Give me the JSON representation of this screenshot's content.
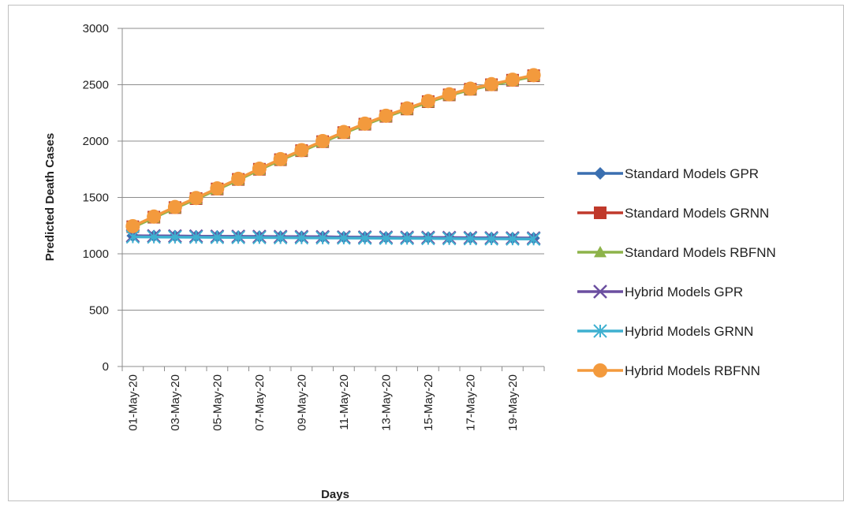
{
  "chart_data": {
    "type": "line",
    "title": "",
    "xlabel": "Days",
    "ylabel": "Predicted Death Cases",
    "ylim": [
      0,
      3000
    ],
    "yticks": [
      "0",
      "500",
      "1000",
      "1500",
      "2000",
      "2500",
      "3000"
    ],
    "grid": true,
    "legend_position": "right",
    "x": [
      "01-May-20",
      "02-May-20",
      "03-May-20",
      "04-May-20",
      "05-May-20",
      "06-May-20",
      "07-May-20",
      "08-May-20",
      "09-May-20",
      "10-May-20",
      "11-May-20",
      "12-May-20",
      "13-May-20",
      "14-May-20",
      "15-May-20",
      "16-May-20",
      "17-May-20",
      "18-May-20",
      "19-May-20",
      "20-May-20"
    ],
    "x_tick_labels": [
      "01-May-20",
      "03-May-20",
      "05-May-20",
      "07-May-20",
      "09-May-20",
      "11-May-20",
      "13-May-20",
      "15-May-20",
      "17-May-20",
      "19-May-20"
    ],
    "series": [
      {
        "name": "Standard Models GPR",
        "color": "#3a6fb0",
        "marker": "diamond",
        "values": [
          1160,
          1158,
          1157,
          1156,
          1155,
          1154,
          1153,
          1152,
          1151,
          1150,
          1148,
          1147,
          1146,
          1145,
          1144,
          1143,
          1142,
          1141,
          1140,
          1139
        ]
      },
      {
        "name": "Standard Models GRNN",
        "color": "#c0392b",
        "marker": "square",
        "values": [
          1240,
          1325,
          1410,
          1490,
          1575,
          1660,
          1750,
          1835,
          1915,
          1995,
          2075,
          2150,
          2220,
          2285,
          2350,
          2410,
          2460,
          2500,
          2540,
          2580
        ]
      },
      {
        "name": "Standard Models RBFNN",
        "color": "#8db34a",
        "marker": "triangle",
        "values": [
          1235,
          1320,
          1405,
          1485,
          1570,
          1655,
          1745,
          1830,
          1910,
          1990,
          2070,
          2145,
          2215,
          2280,
          2345,
          2405,
          2455,
          2495,
          2535,
          2575
        ]
      },
      {
        "name": "Hybrid Models GPR",
        "color": "#6b4fa0",
        "marker": "cross",
        "values": [
          1160,
          1158,
          1157,
          1156,
          1155,
          1154,
          1153,
          1152,
          1151,
          1150,
          1148,
          1147,
          1146,
          1145,
          1144,
          1143,
          1142,
          1141,
          1140,
          1139
        ]
      },
      {
        "name": "Hybrid Models GRNN",
        "color": "#3fb0d0",
        "marker": "star",
        "values": [
          1150,
          1149,
          1148,
          1147,
          1146,
          1145,
          1144,
          1143,
          1142,
          1141,
          1140,
          1139,
          1138,
          1137,
          1136,
          1135,
          1134,
          1133,
          1132,
          1131
        ]
      },
      {
        "name": "Hybrid Models RBFNN",
        "color": "#f39a3d",
        "marker": "circle",
        "values": [
          1245,
          1330,
          1415,
          1495,
          1580,
          1665,
          1755,
          1840,
          1920,
          2000,
          2080,
          2155,
          2225,
          2290,
          2355,
          2415,
          2465,
          2505,
          2545,
          2585
        ]
      }
    ]
  }
}
